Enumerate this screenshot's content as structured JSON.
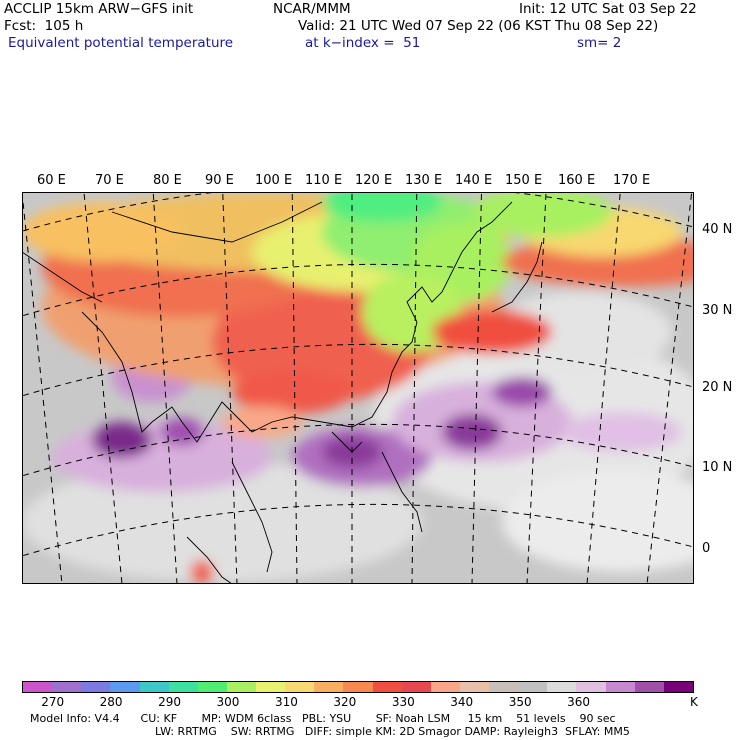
{
  "header": {
    "model": "ACCLIP 15km ARW−GFS init",
    "org": "NCAR/MMM",
    "init": "Init: 12 UTC Sat 03 Sep 22",
    "fcst": "Fcst:  105 h",
    "valid": "Valid: 21 UTC Wed 07 Sep 22 (06 KST Thu 08 Sep 22)",
    "field": "Equivalent potential temperature",
    "level": "at k−index =  51",
    "smooth": "sm= 2"
  },
  "lon_labels": [
    "60 E",
    "70 E",
    "80 E",
    "90 E",
    "100 E",
    "110 E",
    "120 E",
    "130 E",
    "140 E",
    "150 E",
    "160 E",
    "170 E"
  ],
  "lat_labels": [
    "40 N",
    "30 N",
    "20 N",
    "10 N",
    "0"
  ],
  "colorbar": {
    "colors": [
      "#cc55cc",
      "#a070d0",
      "#7b7be0",
      "#5a9bf0",
      "#3cc8c8",
      "#3ce0a0",
      "#50ee70",
      "#a8f060",
      "#e8f070",
      "#f8d870",
      "#f8b060",
      "#f88850",
      "#f05040",
      "#e84850",
      "#f8a888",
      "#e8c0a8",
      "#c8c0b8",
      "#c0c0c0",
      "#dcdcdc",
      "#e0c0e0",
      "#c888d0",
      "#a050a8",
      "#780078"
    ],
    "ticks": [
      "270",
      "280",
      "290",
      "300",
      "310",
      "320",
      "330",
      "340",
      "350",
      "360"
    ],
    "unit": "K"
  },
  "footer": {
    "line1": "Model Info: V4.4      CU: KF       MP: WDM 6class   PBL: YSU       SF: Noah LSM     15 km    51 levels    90 sec",
    "line2": "LW: RRTMG    SW: RRTMG   DIFF: simple KM: 2D Smagor DAMP: Rayleigh3  SFLAY: MM5"
  }
}
